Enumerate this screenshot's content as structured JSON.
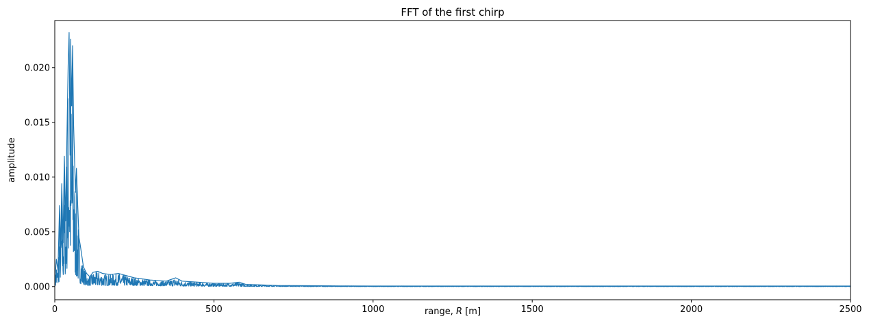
{
  "chart_data": {
    "type": "line",
    "title": "FFT of the first chirp",
    "xlabel_prefix": "range, ",
    "xlabel_var": "R",
    "xlabel_suffix": " [m]",
    "ylabel": "amplitude",
    "xlim": [
      0,
      2500
    ],
    "ylim": [
      -0.0012,
      0.0243
    ],
    "xticks": [
      0,
      500,
      1000,
      1500,
      2000,
      2500
    ],
    "xtick_labels": [
      "0",
      "500",
      "1000",
      "1500",
      "2000",
      "2500"
    ],
    "yticks": [
      0,
      0.005,
      0.01,
      0.015,
      0.02
    ],
    "ytick_labels": [
      "0.000",
      "0.005",
      "0.010",
      "0.015",
      "0.020"
    ],
    "grid": false,
    "legend": "none",
    "series": [
      {
        "color": "#1f77b4",
        "x": [
          0,
          5,
          10,
          15,
          18,
          22,
          26,
          30,
          34,
          38,
          42,
          45,
          48,
          50,
          53,
          56,
          59,
          62,
          65,
          68,
          72,
          76,
          80,
          85,
          90,
          100,
          110,
          120,
          135,
          150,
          175,
          200,
          250,
          300,
          350,
          380,
          400,
          450,
          500,
          550,
          580,
          600,
          650,
          700,
          800,
          900,
          1000,
          1250,
          1500,
          1750,
          2000,
          2250,
          2500
        ],
        "y": [
          0.0005,
          0.0025,
          0.0015,
          0.0074,
          0.0035,
          0.0094,
          0.004,
          0.0119,
          0.006,
          0.0134,
          0.0202,
          0.0232,
          0.012,
          0.0226,
          0.0165,
          0.022,
          0.0149,
          0.0118,
          0.0086,
          0.0108,
          0.0075,
          0.0045,
          0.0038,
          0.0028,
          0.0018,
          0.0012,
          0.0009,
          0.0013,
          0.0014,
          0.0012,
          0.0011,
          0.0012,
          0.0008,
          0.0006,
          0.0005,
          0.0008,
          0.0005,
          0.0004,
          0.0003,
          0.0003,
          0.0004,
          0.0002,
          0.00015,
          0.0001,
          8e-05,
          6e-05,
          5e-05,
          5e-05,
          5e-05,
          5e-05,
          5e-05,
          5e-05,
          5e-05
        ],
        "lower": [
          0,
          0,
          0.0002,
          0.0005,
          0.0008,
          0.001,
          0.0009,
          0.0008,
          0.0012,
          0.0015,
          0.0022,
          0.003,
          0.0025,
          0.002,
          0.0018,
          0.0025,
          0.0015,
          0.0012,
          0.001,
          0.0008,
          0.0006,
          0.0004,
          0.0003,
          0.0002,
          0.0002,
          0.0001,
          0.0001,
          0.0001,
          0.0001,
          0.0001,
          0.0001,
          0.0001,
          0.0001,
          8e-05,
          6e-05,
          5e-05,
          4e-05,
          3e-05,
          2e-05,
          2e-05,
          2e-05,
          1e-05,
          1e-05,
          1e-05,
          0,
          0,
          0,
          0,
          0,
          0,
          0,
          0,
          0
        ]
      }
    ]
  }
}
